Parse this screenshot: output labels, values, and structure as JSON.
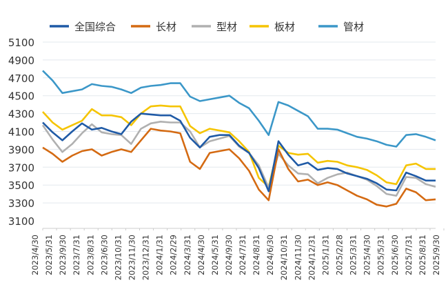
{
  "chart_data": {
    "type": "line",
    "title": "",
    "xlabel": "",
    "ylabel": "",
    "ylim": [
      3100,
      5100
    ],
    "yticks": [
      3100,
      3300,
      3500,
      3700,
      3900,
      4100,
      4300,
      4500,
      4700,
      4900,
      5100
    ],
    "grid": true,
    "legend_position": "top",
    "x_tick_labels": [
      "2023/4/30",
      "2023/5/31",
      "2023/9/30",
      "2023/7/31",
      "2023/8/31",
      "2023/6/30",
      "2023/10/31",
      "2023/11/30",
      "2023/12/31",
      "2024/1/31",
      "2024/2/29",
      "2024/3/31",
      "2024/4/30",
      "2024/5/31",
      "2024/9/30",
      "2024/7/31",
      "2024/8/31",
      "2024/6/30",
      "2024/10/31",
      "2024/11/30",
      "2024/12/31",
      "2025/1/31",
      "2025/2/28",
      "2025/3/31",
      "2025/4/30",
      "2025/5/31",
      "2025/6/30",
      "2025/7/31",
      "2025/8/31",
      "2025/9/30"
    ],
    "series": [
      {
        "name": "全国综合",
        "color": "#1f5aa6",
        "values": [
          4200,
          4090,
          4000,
          4100,
          4190,
          4120,
          4140,
          4100,
          4070,
          4210,
          4300,
          4290,
          4280,
          4280,
          4220,
          4030,
          3920,
          4040,
          4060,
          4060,
          3940,
          3860,
          3690,
          3430,
          3990,
          3840,
          3720,
          3750,
          3670,
          3690,
          3680,
          3630,
          3600,
          3570,
          3520,
          3450,
          3440,
          3640,
          3600,
          3550,
          3550
        ]
      },
      {
        "name": "长材",
        "color": "#d46a12",
        "values": [
          3920,
          3850,
          3760,
          3830,
          3880,
          3900,
          3830,
          3870,
          3900,
          3870,
          4000,
          4130,
          4110,
          4100,
          4080,
          3760,
          3680,
          3860,
          3880,
          3900,
          3800,
          3660,
          3450,
          3330,
          3900,
          3680,
          3540,
          3560,
          3500,
          3530,
          3500,
          3440,
          3380,
          3340,
          3280,
          3260,
          3290,
          3460,
          3420,
          3330,
          3340
        ]
      },
      {
        "name": "型材",
        "color": "#b0b0b0",
        "values": [
          4170,
          4010,
          3870,
          3960,
          4080,
          4180,
          4090,
          4070,
          4060,
          3960,
          4130,
          4190,
          4210,
          4200,
          4200,
          4100,
          3920,
          3990,
          4020,
          4050,
          3930,
          3860,
          3720,
          3470,
          3850,
          3720,
          3630,
          3620,
          3520,
          3580,
          3620,
          3640,
          3600,
          3560,
          3490,
          3400,
          3380,
          3590,
          3580,
          3510,
          3480
        ]
      },
      {
        "name": "板材",
        "color": "#f5c400",
        "values": [
          4320,
          4200,
          4120,
          4170,
          4220,
          4350,
          4280,
          4280,
          4260,
          4170,
          4300,
          4380,
          4390,
          4380,
          4380,
          4160,
          4080,
          4130,
          4110,
          4090,
          3990,
          3870,
          3580,
          3480,
          3940,
          3860,
          3840,
          3850,
          3750,
          3770,
          3760,
          3720,
          3700,
          3670,
          3610,
          3530,
          3510,
          3720,
          3740,
          3680,
          3680
        ]
      },
      {
        "name": "管材",
        "color": "#3b97c8",
        "values": [
          4780,
          4670,
          4530,
          4550,
          4570,
          4630,
          4610,
          4600,
          4570,
          4530,
          4590,
          4610,
          4620,
          4640,
          4640,
          4490,
          4440,
          4460,
          4480,
          4500,
          4420,
          4360,
          4220,
          4060,
          4430,
          4390,
          4330,
          4270,
          4130,
          4130,
          4120,
          4080,
          4040,
          4020,
          3990,
          3950,
          3930,
          4060,
          4070,
          4040,
          4000
        ]
      }
    ]
  }
}
